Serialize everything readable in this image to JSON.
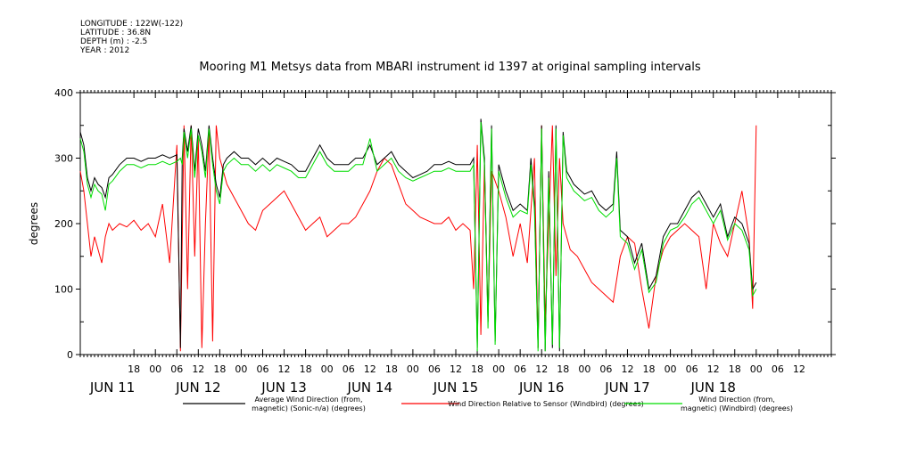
{
  "header": {
    "longitude": "LONGITUDE : 122W(-122)",
    "latitude": "LATITUDE : 36.8N",
    "depth": "DEPTH (m) : -2.5",
    "year": "YEAR : 2012"
  },
  "chart_data": {
    "type": "line",
    "title": "Mooring M1 Metsys data from MBARI instrument id 1397 at original sampling intervals",
    "ylabel": "degrees",
    "xlabel": "",
    "ylim": [
      0,
      400
    ],
    "yticks": [
      0,
      100,
      200,
      300,
      400
    ],
    "xlim": [
      -9,
      201
    ],
    "hour_ticks": [
      {
        "t": 6,
        "label": "18"
      },
      {
        "t": 12,
        "label": "00"
      },
      {
        "t": 18,
        "label": "06"
      },
      {
        "t": 24,
        "label": "12"
      },
      {
        "t": 30,
        "label": "18"
      },
      {
        "t": 36,
        "label": "00"
      },
      {
        "t": 42,
        "label": "06"
      },
      {
        "t": 48,
        "label": "12"
      },
      {
        "t": 54,
        "label": "18"
      },
      {
        "t": 60,
        "label": "00"
      },
      {
        "t": 66,
        "label": "06"
      },
      {
        "t": 72,
        "label": "12"
      },
      {
        "t": 78,
        "label": "18"
      },
      {
        "t": 84,
        "label": "00"
      },
      {
        "t": 90,
        "label": "06"
      },
      {
        "t": 96,
        "label": "12"
      },
      {
        "t": 102,
        "label": "18"
      },
      {
        "t": 108,
        "label": "00"
      },
      {
        "t": 114,
        "label": "06"
      },
      {
        "t": 120,
        "label": "12"
      },
      {
        "t": 126,
        "label": "18"
      },
      {
        "t": 132,
        "label": "00"
      },
      {
        "t": 138,
        "label": "06"
      },
      {
        "t": 144,
        "label": "12"
      },
      {
        "t": 150,
        "label": "18"
      },
      {
        "t": 156,
        "label": "00"
      },
      {
        "t": 162,
        "label": "06"
      },
      {
        "t": 168,
        "label": "12"
      },
      {
        "t": 174,
        "label": "18"
      },
      {
        "t": 180,
        "label": "00"
      },
      {
        "t": 186,
        "label": "06"
      },
      {
        "t": 192,
        "label": "12"
      }
    ],
    "day_labels": [
      {
        "t": 0,
        "label": "JUN 11"
      },
      {
        "t": 24,
        "label": "JUN 12"
      },
      {
        "t": 48,
        "label": "JUN 13"
      },
      {
        "t": 72,
        "label": "JUN 14"
      },
      {
        "t": 96,
        "label": "JUN 15"
      },
      {
        "t": 120,
        "label": "JUN 16"
      },
      {
        "t": 144,
        "label": "JUN 17"
      },
      {
        "t": 168,
        "label": "JUN 18"
      }
    ],
    "x_units_note": "hours since JUN 11 12:00 (axis start at 03:00)",
    "series": [
      {
        "name": "Average Wind Direction (from, magnetic) (Sonic-n/a) (degrees)",
        "color": "#000000",
        "x": [
          -9,
          -8,
          -7,
          -6,
          -5,
          -4,
          -3,
          -2,
          -1,
          0,
          2,
          4,
          6,
          8,
          10,
          12,
          14,
          16,
          18,
          19,
          19.5,
          20,
          21,
          22,
          23,
          24,
          25,
          26,
          27,
          28,
          29,
          30,
          31,
          32,
          34,
          36,
          38,
          40,
          42,
          44,
          46,
          48,
          50,
          52,
          54,
          56,
          58,
          60,
          62,
          64,
          66,
          68,
          70,
          72,
          74,
          76,
          78,
          80,
          82,
          84,
          86,
          88,
          90,
          92,
          94,
          96,
          98,
          100,
          101,
          102,
          103,
          104,
          105,
          106,
          107,
          108,
          110,
          112,
          114,
          116,
          117,
          118,
          119,
          120,
          121,
          122,
          123,
          124,
          125,
          126,
          127,
          128,
          129,
          130,
          132,
          134,
          136,
          138,
          140,
          141,
          142,
          144,
          146,
          148,
          150,
          152,
          154,
          156,
          158,
          160,
          162,
          164,
          166,
          168,
          170,
          172,
          174,
          176,
          178,
          179,
          180
        ],
        "y": [
          340,
          320,
          270,
          250,
          270,
          260,
          255,
          240,
          270,
          275,
          290,
          300,
          300,
          295,
          300,
          300,
          305,
          300,
          305,
          10,
          300,
          345,
          310,
          350,
          280,
          345,
          320,
          280,
          350,
          300,
          260,
          240,
          290,
          300,
          310,
          300,
          300,
          290,
          300,
          290,
          300,
          295,
          290,
          280,
          280,
          300,
          320,
          300,
          290,
          290,
          290,
          300,
          300,
          320,
          290,
          300,
          310,
          290,
          280,
          270,
          275,
          280,
          290,
          290,
          295,
          290,
          290,
          290,
          300,
          10,
          360,
          300,
          50,
          350,
          20,
          290,
          250,
          220,
          230,
          220,
          300,
          230,
          10,
          350,
          5,
          280,
          10,
          350,
          5,
          340,
          280,
          270,
          260,
          255,
          245,
          250,
          230,
          220,
          230,
          310,
          190,
          180,
          140,
          170,
          100,
          120,
          180,
          200,
          200,
          220,
          240,
          250,
          230,
          210,
          230,
          180,
          210,
          200,
          170,
          100,
          110
        ]
      },
      {
        "name": "Wind Direction Relative to Sensor (Windbird) (degrees)",
        "color": "#ff0000",
        "x": [
          -9,
          -8,
          -7,
          -6,
          -5,
          -4,
          -3,
          -2,
          -1,
          0,
          2,
          4,
          6,
          8,
          10,
          12,
          14,
          16,
          18,
          19,
          20,
          21,
          22,
          23,
          24,
          25,
          26,
          27,
          28,
          29,
          30,
          32,
          34,
          36,
          38,
          40,
          42,
          44,
          46,
          48,
          50,
          52,
          54,
          56,
          58,
          60,
          62,
          64,
          66,
          68,
          70,
          72,
          74,
          76,
          78,
          80,
          82,
          84,
          86,
          88,
          90,
          92,
          94,
          96,
          98,
          100,
          101,
          102,
          103,
          104,
          105,
          106,
          108,
          110,
          112,
          114,
          116,
          118,
          119,
          120,
          121,
          122,
          123,
          124,
          125,
          126,
          127,
          128,
          130,
          132,
          134,
          136,
          138,
          140,
          142,
          144,
          146,
          148,
          150,
          152,
          154,
          156,
          158,
          160,
          162,
          164,
          166,
          168,
          170,
          172,
          174,
          176,
          178,
          179,
          180
        ],
        "y": [
          280,
          250,
          200,
          150,
          180,
          160,
          140,
          180,
          200,
          190,
          200,
          195,
          205,
          190,
          200,
          180,
          230,
          140,
          320,
          5,
          350,
          100,
          350,
          150,
          330,
          10,
          200,
          340,
          20,
          350,
          300,
          260,
          240,
          220,
          200,
          190,
          220,
          230,
          240,
          250,
          230,
          210,
          190,
          200,
          210,
          180,
          190,
          200,
          200,
          210,
          230,
          250,
          280,
          300,
          290,
          260,
          230,
          220,
          210,
          205,
          200,
          200,
          210,
          190,
          200,
          190,
          100,
          320,
          30,
          290,
          50,
          280,
          250,
          210,
          150,
          200,
          140,
          300,
          10,
          350,
          50,
          200,
          350,
          120,
          300,
          200,
          180,
          160,
          150,
          130,
          110,
          100,
          90,
          80,
          150,
          180,
          170,
          100,
          40,
          120,
          160,
          180,
          190,
          200,
          190,
          180,
          100,
          200,
          170,
          150,
          200,
          250,
          180,
          70,
          350
        ]
      },
      {
        "name": "Wind Direction (from, magnetic) (Windbird) (degrees)",
        "color": "#00dd00",
        "x": [
          -9,
          -8,
          -7,
          -6,
          -5,
          -4,
          -3,
          -2,
          -1,
          0,
          2,
          4,
          6,
          8,
          10,
          12,
          14,
          16,
          18,
          19,
          19.5,
          20,
          21,
          22,
          23,
          24,
          25,
          26,
          27,
          28,
          29,
          30,
          31,
          32,
          34,
          36,
          38,
          40,
          42,
          44,
          46,
          48,
          50,
          52,
          54,
          56,
          58,
          60,
          62,
          64,
          66,
          68,
          70,
          72,
          74,
          76,
          78,
          80,
          82,
          84,
          86,
          88,
          90,
          92,
          94,
          96,
          98,
          100,
          101,
          102,
          103,
          104,
          105,
          106,
          107,
          108,
          110,
          112,
          114,
          116,
          117,
          118,
          119,
          120,
          121,
          122,
          123,
          124,
          125,
          126,
          127,
          128,
          129,
          130,
          132,
          134,
          136,
          138,
          140,
          141,
          142,
          144,
          146,
          148,
          150,
          152,
          154,
          156,
          158,
          160,
          162,
          164,
          166,
          168,
          170,
          172,
          174,
          176,
          178,
          179,
          180
        ],
        "y": [
          330,
          310,
          260,
          240,
          260,
          250,
          245,
          220,
          260,
          265,
          280,
          290,
          290,
          285,
          290,
          290,
          295,
          290,
          295,
          300,
          290,
          340,
          300,
          345,
          270,
          335,
          310,
          270,
          345,
          290,
          250,
          230,
          280,
          290,
          300,
          290,
          290,
          280,
          290,
          280,
          290,
          285,
          280,
          270,
          270,
          290,
          310,
          290,
          280,
          280,
          280,
          290,
          290,
          330,
          280,
          290,
          300,
          280,
          270,
          265,
          270,
          275,
          280,
          280,
          285,
          280,
          280,
          280,
          290,
          5,
          355,
          290,
          40,
          345,
          15,
          280,
          240,
          210,
          220,
          215,
          290,
          220,
          5,
          345,
          5,
          270,
          15,
          345,
          10,
          335,
          270,
          260,
          250,
          245,
          235,
          240,
          220,
          210,
          220,
          300,
          180,
          170,
          130,
          160,
          95,
          110,
          170,
          190,
          195,
          210,
          230,
          240,
          220,
          200,
          220,
          175,
          200,
          190,
          160,
          90,
          100
        ]
      }
    ]
  },
  "legend": [
    {
      "line1": "Average Wind Direction (from,",
      "line2": "magnetic) (Sonic-n/a) (degrees)",
      "color": "#000000"
    },
    {
      "line1": "Wind Direction Relative to Sensor (Windbird) (degrees)",
      "line2": "",
      "color": "#ff0000"
    },
    {
      "line1": "Wind Direction (from,",
      "line2": "magnetic) (Windbird) (degrees)",
      "color": "#00dd00"
    }
  ]
}
